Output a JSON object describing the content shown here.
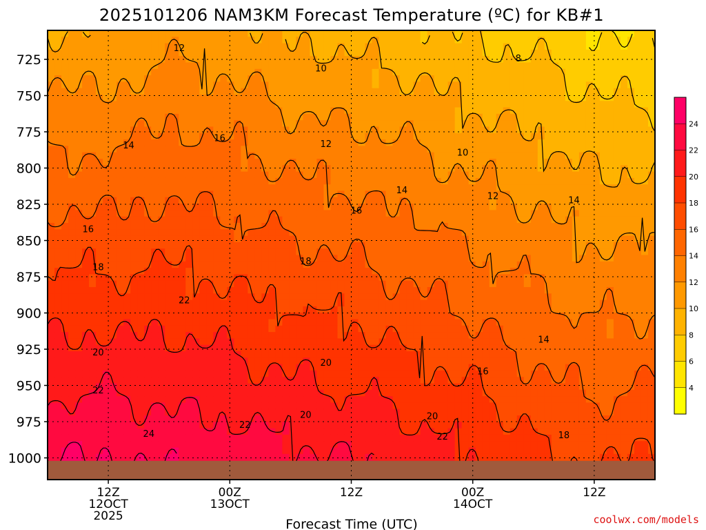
{
  "chart_data": {
    "type": "heatmap",
    "title": "2025101206 NAM3KM Forecast Temperature (ºC) for KB#1",
    "xlabel": "Forecast Time (UTC)",
    "ylabel": "",
    "credit": "coolwx.com/models",
    "y_axis": {
      "unit": "hPa",
      "range": [
        1015,
        705
      ],
      "ticks": [
        725,
        750,
        775,
        800,
        825,
        850,
        875,
        900,
        925,
        950,
        975,
        1000
      ],
      "tick_labels": [
        "725",
        "750",
        "775",
        "800",
        "825",
        "850",
        "875",
        "900",
        "925",
        "950",
        "975",
        "1000"
      ]
    },
    "x_axis": {
      "unit": "forecast hour",
      "range": [
        0,
        60
      ],
      "ticks": [
        6,
        18,
        30,
        42,
        54
      ],
      "tick_labels": [
        [
          "12Z",
          "12OCT",
          "2025"
        ],
        [
          "00Z",
          "13OCT"
        ],
        [
          "12Z"
        ],
        [
          "00Z",
          "14OCT"
        ],
        [
          "12Z"
        ]
      ]
    },
    "grid": true,
    "colorbar": {
      "levels": [
        4,
        6,
        8,
        10,
        12,
        14,
        16,
        18,
        20,
        22,
        24
      ],
      "labels": [
        "4",
        "6",
        "8",
        "10",
        "12",
        "14",
        "16",
        "18",
        "20",
        "22",
        "24"
      ],
      "range": [
        2,
        26
      ],
      "colors": [
        "#ffff00",
        "#ffe500",
        "#ffcc00",
        "#ffb300",
        "#ff9900",
        "#ff8000",
        "#ff6600",
        "#ff4d00",
        "#ff3300",
        "#ff1a1a",
        "#ff0a40",
        "#ff0066"
      ]
    },
    "ground": {
      "color": "#a05a3c",
      "surface_pressure_hpa": 1002
    },
    "temperature_profiles": {
      "hours": [
        0,
        6,
        12,
        18,
        24,
        30,
        36,
        42,
        48,
        54,
        60
      ],
      "t_at_725": [
        11,
        11,
        12,
        11.5,
        10.5,
        10,
        9.5,
        8.5,
        8,
        7,
        6.5
      ],
      "t_at_1000": [
        24,
        24,
        23.5,
        23,
        22.5,
        22,
        21,
        20,
        18.5,
        17.5,
        18.5
      ]
    },
    "contour_labels": [
      {
        "text": "12",
        "hour": 13,
        "pressure": 717
      },
      {
        "text": "10",
        "hour": 27,
        "pressure": 731
      },
      {
        "text": "8",
        "hour": 46.5,
        "pressure": 724
      },
      {
        "text": "14",
        "hour": 8,
        "pressure": 784
      },
      {
        "text": "16",
        "hour": 17,
        "pressure": 779
      },
      {
        "text": "12",
        "hour": 27.5,
        "pressure": 783
      },
      {
        "text": "10",
        "hour": 41,
        "pressure": 789
      },
      {
        "text": "14",
        "hour": 35,
        "pressure": 815
      },
      {
        "text": "12",
        "hour": 44,
        "pressure": 819
      },
      {
        "text": "16",
        "hour": 30.5,
        "pressure": 829
      },
      {
        "text": "14",
        "hour": 52,
        "pressure": 822
      },
      {
        "text": "16",
        "hour": 4,
        "pressure": 842
      },
      {
        "text": "18",
        "hour": 5,
        "pressure": 868
      },
      {
        "text": "18",
        "hour": 25.5,
        "pressure": 864
      },
      {
        "text": "22",
        "hour": 13.5,
        "pressure": 891
      },
      {
        "text": "20",
        "hour": 5,
        "pressure": 927
      },
      {
        "text": "20",
        "hour": 27.5,
        "pressure": 934
      },
      {
        "text": "16",
        "hour": 43,
        "pressure": 940
      },
      {
        "text": "14",
        "hour": 49,
        "pressure": 918
      },
      {
        "text": "22",
        "hour": 5,
        "pressure": 953
      },
      {
        "text": "20",
        "hour": 25.5,
        "pressure": 970
      },
      {
        "text": "20",
        "hour": 38,
        "pressure": 971
      },
      {
        "text": "22",
        "hour": 19.5,
        "pressure": 977
      },
      {
        "text": "22",
        "hour": 39,
        "pressure": 985
      },
      {
        "text": "24",
        "hour": 10,
        "pressure": 983
      },
      {
        "text": "18",
        "hour": 51,
        "pressure": 984
      }
    ]
  }
}
